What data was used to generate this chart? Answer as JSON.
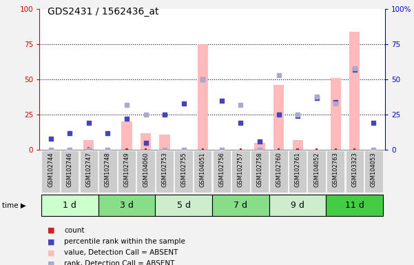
{
  "title": "GDS2431 / 1562436_at",
  "samples": [
    "GSM102744",
    "GSM102746",
    "GSM102747",
    "GSM102748",
    "GSM102749",
    "GSM104060",
    "GSM102753",
    "GSM102755",
    "GSM104051",
    "GSM102756",
    "GSM102757",
    "GSM102758",
    "GSM102760",
    "GSM102761",
    "GSM104052",
    "GSM102763",
    "GSM103323",
    "GSM104053"
  ],
  "groups": [
    {
      "label": "1 d",
      "start": 0,
      "end": 2
    },
    {
      "label": "3 d",
      "start": 3,
      "end": 5
    },
    {
      "label": "5 d",
      "start": 6,
      "end": 8
    },
    {
      "label": "7 d",
      "start": 9,
      "end": 11
    },
    {
      "label": "9 d",
      "start": 12,
      "end": 14
    },
    {
      "label": "11 d",
      "start": 15,
      "end": 17
    }
  ],
  "group_colors": [
    "#ccffcc",
    "#88dd88",
    "#cceecc",
    "#88dd88",
    "#cceecc",
    "#44cc44"
  ],
  "count_values": [
    1,
    1,
    2,
    1,
    1,
    1,
    1,
    1,
    1,
    1,
    1,
    1,
    1,
    1,
    1,
    1,
    1,
    1
  ],
  "percentile_rank_values": [
    8,
    12,
    19,
    12,
    22,
    5,
    25,
    33,
    50,
    35,
    19,
    6,
    25,
    24,
    37,
    34,
    57,
    19
  ],
  "absent_value_values": [
    0,
    0,
    7,
    0,
    20,
    12,
    11,
    0,
    75,
    0,
    0,
    5,
    46,
    7,
    0,
    51,
    84,
    0
  ],
  "absent_rank_values": [
    0,
    0,
    0,
    0,
    32,
    25,
    0,
    0,
    50,
    0,
    32,
    0,
    53,
    25,
    38,
    33,
    58,
    0
  ],
  "bg_color": "#f2f2f2",
  "plot_bg": "#ffffff",
  "left_axis_color": "#cc0000",
  "right_axis_color": "#0000cc",
  "bar_color_count": "#cc2222",
  "bar_color_absent_value": "#ffbbbb",
  "dot_color_percentile": "#4444bb",
  "dot_color_absent_rank": "#aaaacc",
  "yticks": [
    0,
    25,
    50,
    75,
    100
  ],
  "sample_box_color": "#cccccc"
}
